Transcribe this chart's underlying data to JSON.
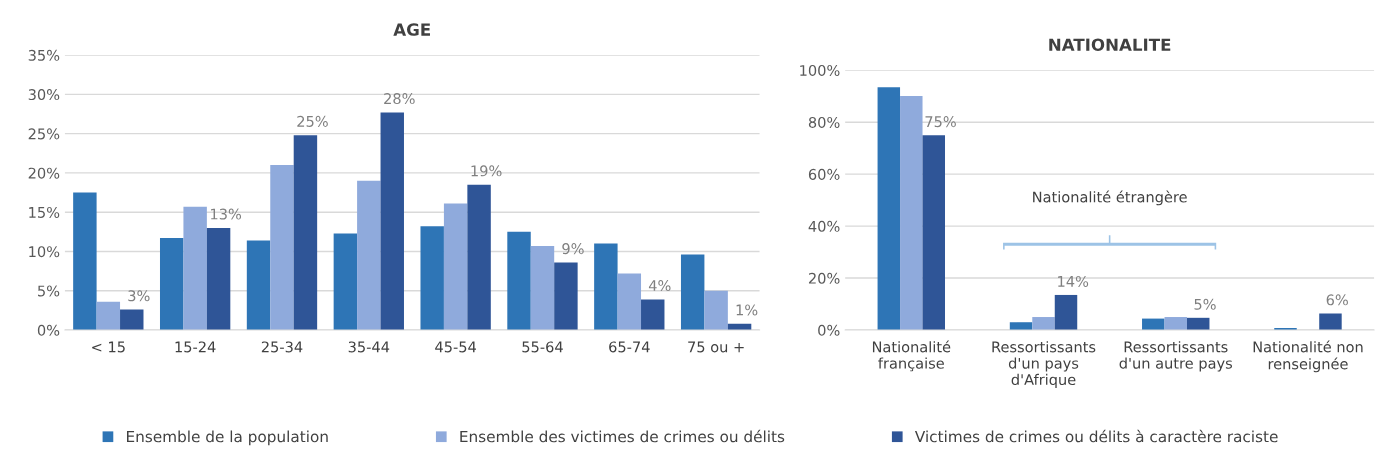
{
  "chart_data": [
    {
      "type": "bar",
      "title": "AGE",
      "categories": [
        "< 15",
        "15-24",
        "25-34",
        "35-44",
        "45-54",
        "55-64",
        "65-74",
        "75 ou +"
      ],
      "series": [
        {
          "name": "Ensemble de la population",
          "color": "#2e75b6",
          "values": [
            17.5,
            11.7,
            11.4,
            12.3,
            13.2,
            12.5,
            11.0,
            9.6
          ]
        },
        {
          "name": "Ensemble des victimes de crimes ou délits",
          "color": "#8faadc",
          "values": [
            3.6,
            15.7,
            21.0,
            19.0,
            16.1,
            10.7,
            7.2,
            5.0
          ]
        },
        {
          "name": "Victimes de crimes ou délits à caractère raciste",
          "color": "#2f5597",
          "values": [
            2.6,
            13.0,
            24.8,
            27.7,
            18.5,
            8.6,
            3.9,
            0.8
          ],
          "value_labels": [
            "3%",
            "13%",
            "25%",
            "28%",
            "19%",
            "9%",
            "4%",
            "1%"
          ]
        }
      ],
      "ylim": [
        0,
        35
      ],
      "yticks": [
        {
          "value": 0,
          "label": "0%"
        },
        {
          "value": 5,
          "label": "5%"
        },
        {
          "value": 10,
          "label": "10%"
        },
        {
          "value": 15,
          "label": "15%"
        },
        {
          "value": 20,
          "label": "20%"
        },
        {
          "value": 25,
          "label": "25%"
        },
        {
          "value": 30,
          "label": "30%"
        },
        {
          "value": 35,
          "label": "35%"
        }
      ],
      "grid": "y",
      "legend": "bottom"
    },
    {
      "type": "bar",
      "title": "NATIONALITE",
      "categories": [
        "Nationalité\nfrançaise",
        "Ressortissants\nd'un pays\nd'Afrique",
        "Ressortissants\nd'un autre pays",
        "Nationalité non\nrenseignée"
      ],
      "series": [
        {
          "color": "#2e75b6",
          "values": [
            93.4,
            3.0,
            4.4,
            0.8
          ]
        },
        {
          "color": "#8faadc",
          "values": [
            90.1,
            5.0,
            5.0,
            0
          ]
        },
        {
          "color": "#2f5597",
          "values": [
            75,
            13.5,
            4.7,
            6.4
          ],
          "value_labels": [
            "75%",
            "14%",
            "5%",
            "6%"
          ]
        }
      ],
      "ylim": [
        0,
        100
      ],
      "yticks": [
        {
          "value": 0,
          "label": "0%"
        },
        {
          "value": 20,
          "label": "20%"
        },
        {
          "value": 40,
          "label": "40%"
        },
        {
          "value": 60,
          "label": "60%"
        },
        {
          "value": 80,
          "label": "80%"
        },
        {
          "value": 100,
          "label": "100%"
        }
      ],
      "grid": "y",
      "annotations": [
        "Nationalité étrangère"
      ]
    }
  ]
}
